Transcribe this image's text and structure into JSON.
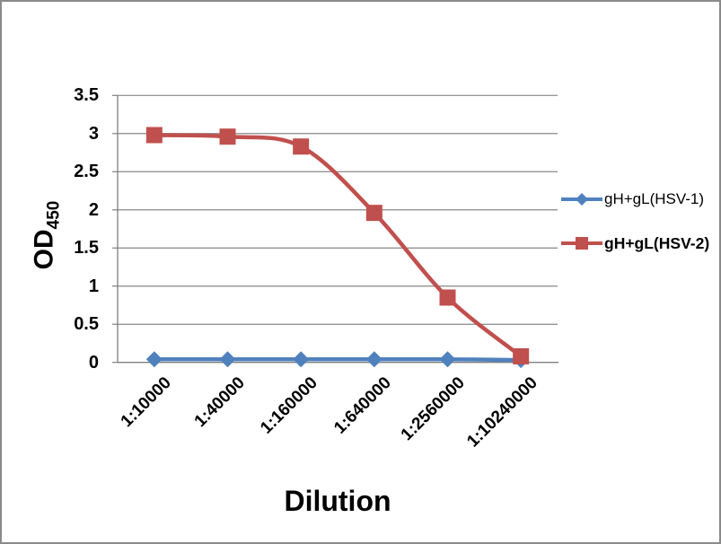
{
  "chart_data": {
    "type": "line",
    "title": "",
    "xlabel": "Dilution",
    "ylabel": "OD450",
    "ylabel_main": "OD",
    "ylabel_sub": "450",
    "categories": [
      "1:10000",
      "1:40000",
      "1:160000",
      "1:640000",
      "1:2560000",
      "1:10240000"
    ],
    "series": [
      {
        "name": "gH+gL(HSV-1)",
        "color": "#4F81BD",
        "marker": "diamond",
        "legend_bold": false,
        "values": [
          0.04,
          0.04,
          0.04,
          0.04,
          0.04,
          0.03
        ]
      },
      {
        "name": "gH+gL(HSV-2)",
        "color": "#C0504D",
        "marker": "square",
        "legend_bold": true,
        "values": [
          2.98,
          2.96,
          2.83,
          1.96,
          0.85,
          0.08
        ]
      }
    ],
    "ylim": [
      0,
      3.5
    ],
    "ytick_step": 0.5,
    "ytick_labels": [
      "0",
      "0.5",
      "1",
      "1.5",
      "2",
      "2.5",
      "3",
      "3.5"
    ],
    "grid": true,
    "legend_position": "right",
    "line_smooth": true,
    "colors": {
      "gridline": "#878787",
      "axis": "#808080",
      "text": "#000000",
      "frame_border": "#8a8a8a",
      "background": "#ffffff"
    }
  }
}
